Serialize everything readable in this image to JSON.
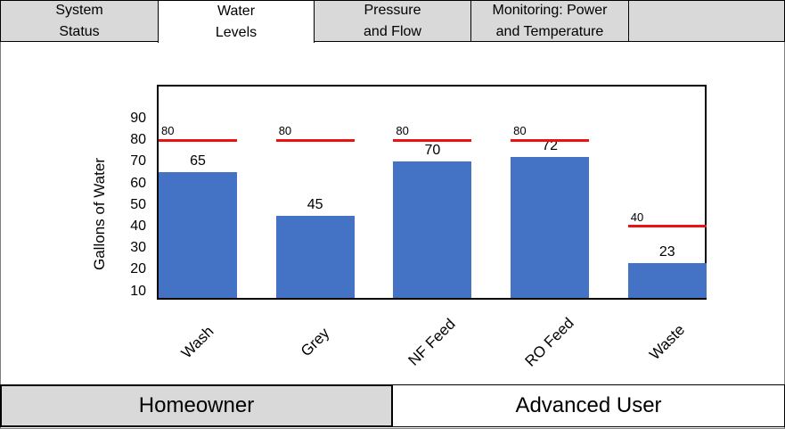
{
  "tabs": [
    {
      "label": "System\nStatus",
      "active": false
    },
    {
      "label": "Water\nLevels",
      "active": true
    },
    {
      "label": "Pressure\nand Flow",
      "active": false
    },
    {
      "label": "Monitoring: Power\nand Temperature",
      "active": false
    },
    {
      "label": "",
      "active": false
    }
  ],
  "chart_data": {
    "type": "bar",
    "title": "",
    "ylabel": "Gallons of Water",
    "xlabel": "",
    "ylim": [
      10,
      90
    ],
    "yticks": [
      10,
      20,
      30,
      40,
      50,
      60,
      70,
      80,
      90
    ],
    "categories": [
      "Wash",
      "Grey",
      "NF Feed",
      "RO Feed",
      "Waste"
    ],
    "values": [
      65,
      45,
      70,
      72,
      23
    ],
    "value_labels": [
      "65",
      "45",
      "70",
      "72",
      "23"
    ],
    "limits": [
      80,
      80,
      80,
      80,
      40
    ],
    "limit_labels": [
      "80",
      "80",
      "80",
      "80",
      "40"
    ],
    "bar_color": "#4472c4",
    "limit_color": "#ee1111"
  },
  "footer": {
    "homeowner_label": "Homeowner",
    "advanced_label": "Advanced User"
  }
}
